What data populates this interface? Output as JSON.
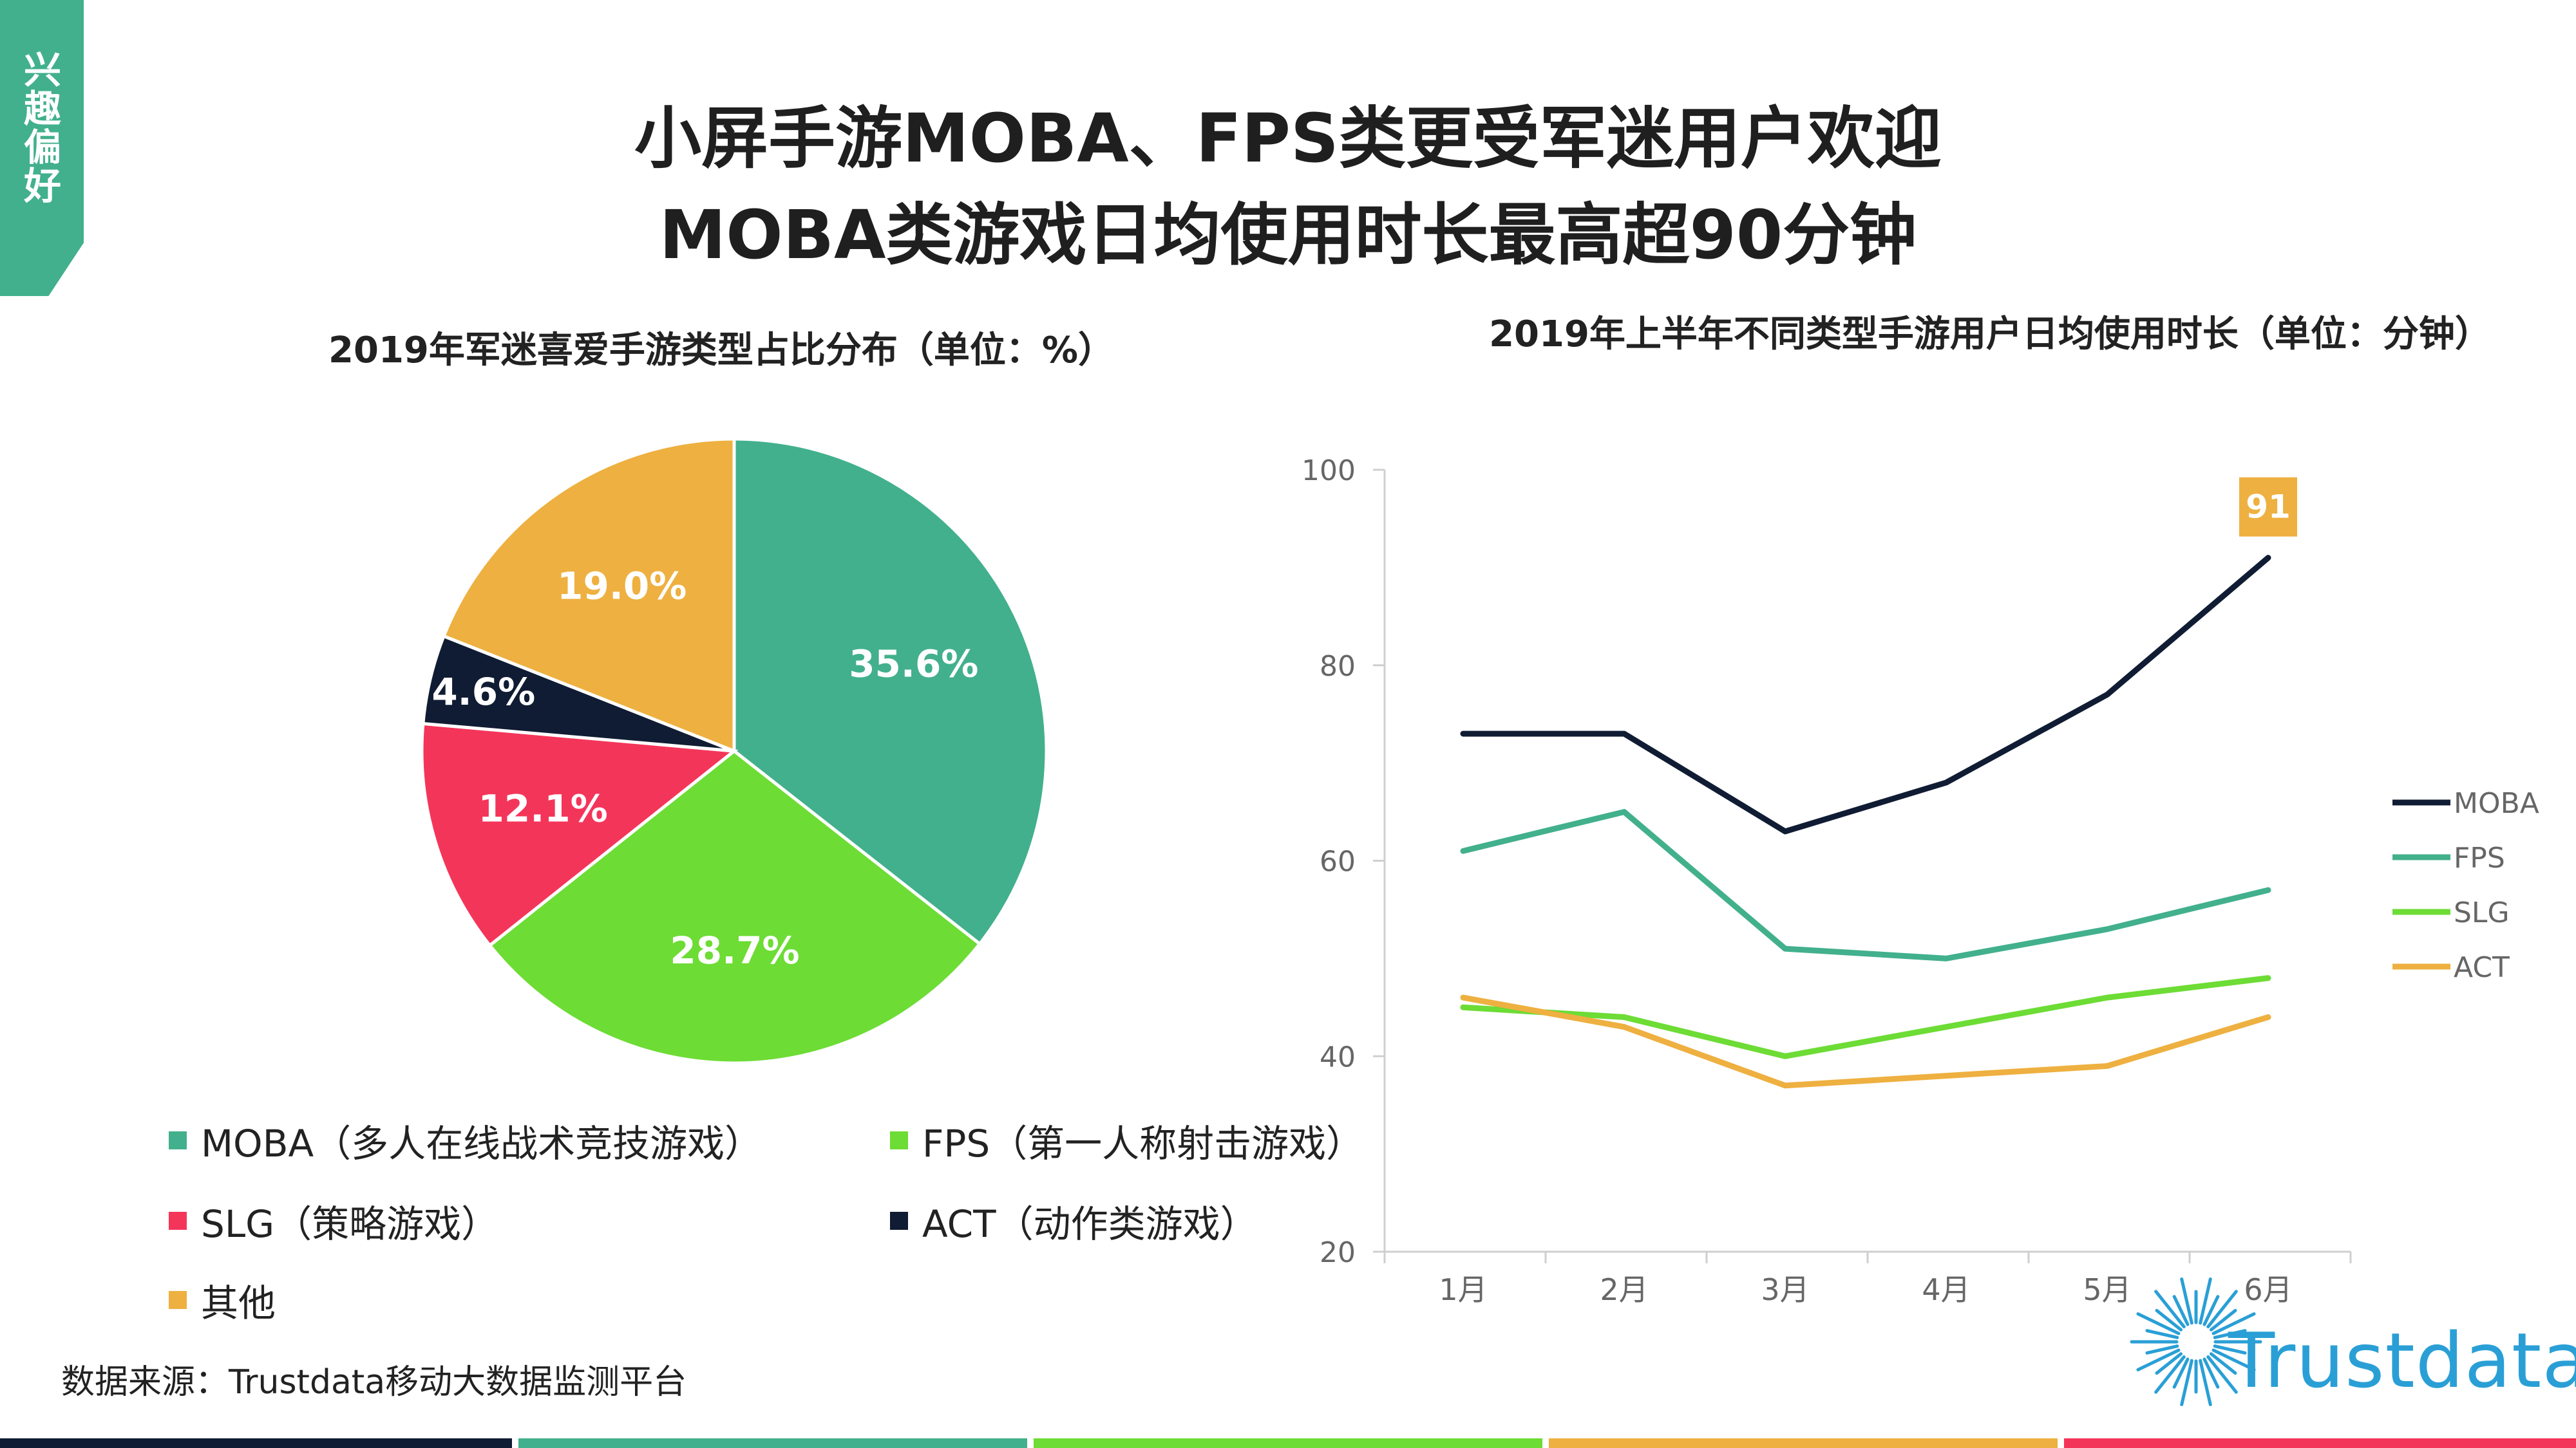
{
  "side_tab": "兴趣偏好",
  "title_line1": "小屏手游MOBA、FPS类更受军迷用户欢迎",
  "title_line2": "MOBA类游戏日均使用时长最高超90分钟",
  "source": "数据来源：Trustdata移动大数据监测平台",
  "brand": "Trustdata",
  "colors": {
    "green": "#42b08c",
    "lime": "#6ddc35",
    "red": "#f4355a",
    "navy": "#101c33",
    "orange": "#eeb040",
    "axis": "#cfcfcf"
  },
  "chart_data": [
    {
      "type": "pie",
      "title": "2019年军迷喜爱手游类型占比分布（单位：%）",
      "slices": [
        {
          "label": "MOBA（多人在线战术竞技游戏）",
          "value": 35.6,
          "display": "35.6%",
          "color": "#42b08c"
        },
        {
          "label": "FPS（第一人称射击游戏）",
          "value": 28.7,
          "display": "28.7%",
          "color": "#6ddc35"
        },
        {
          "label": "SLG（策略游戏）",
          "value": 12.1,
          "display": "12.1%",
          "color": "#f4355a"
        },
        {
          "label": "ACT（动作类游戏）",
          "value": 4.6,
          "display": "4.6%",
          "color": "#101c33"
        },
        {
          "label": "其他",
          "value": 19.0,
          "display": "19.0%",
          "color": "#eeb040"
        }
      ]
    },
    {
      "type": "line",
      "title": "2019年上半年不同类型手游用户日均使用时长（单位：分钟）",
      "x": [
        "1月",
        "2月",
        "3月",
        "4月",
        "5月",
        "6月"
      ],
      "ylim": [
        20,
        100
      ],
      "yticks": [
        "20",
        "40",
        "60",
        "80",
        "100"
      ],
      "series": [
        {
          "name": "MOBA",
          "color": "#101c33",
          "values": [
            73,
            73,
            63,
            68,
            77,
            91
          ]
        },
        {
          "name": "FPS",
          "color": "#42b08c",
          "values": [
            61,
            65,
            51,
            50,
            53,
            57
          ]
        },
        {
          "name": "SLG",
          "color": "#6ddc35",
          "values": [
            45,
            44,
            40,
            43,
            46,
            48
          ]
        },
        {
          "name": "ACT",
          "color": "#eeb040",
          "values": [
            46,
            43,
            37,
            38,
            39,
            44
          ]
        }
      ],
      "annotation": {
        "series": "MOBA",
        "index": 5,
        "text": "91"
      }
    }
  ]
}
